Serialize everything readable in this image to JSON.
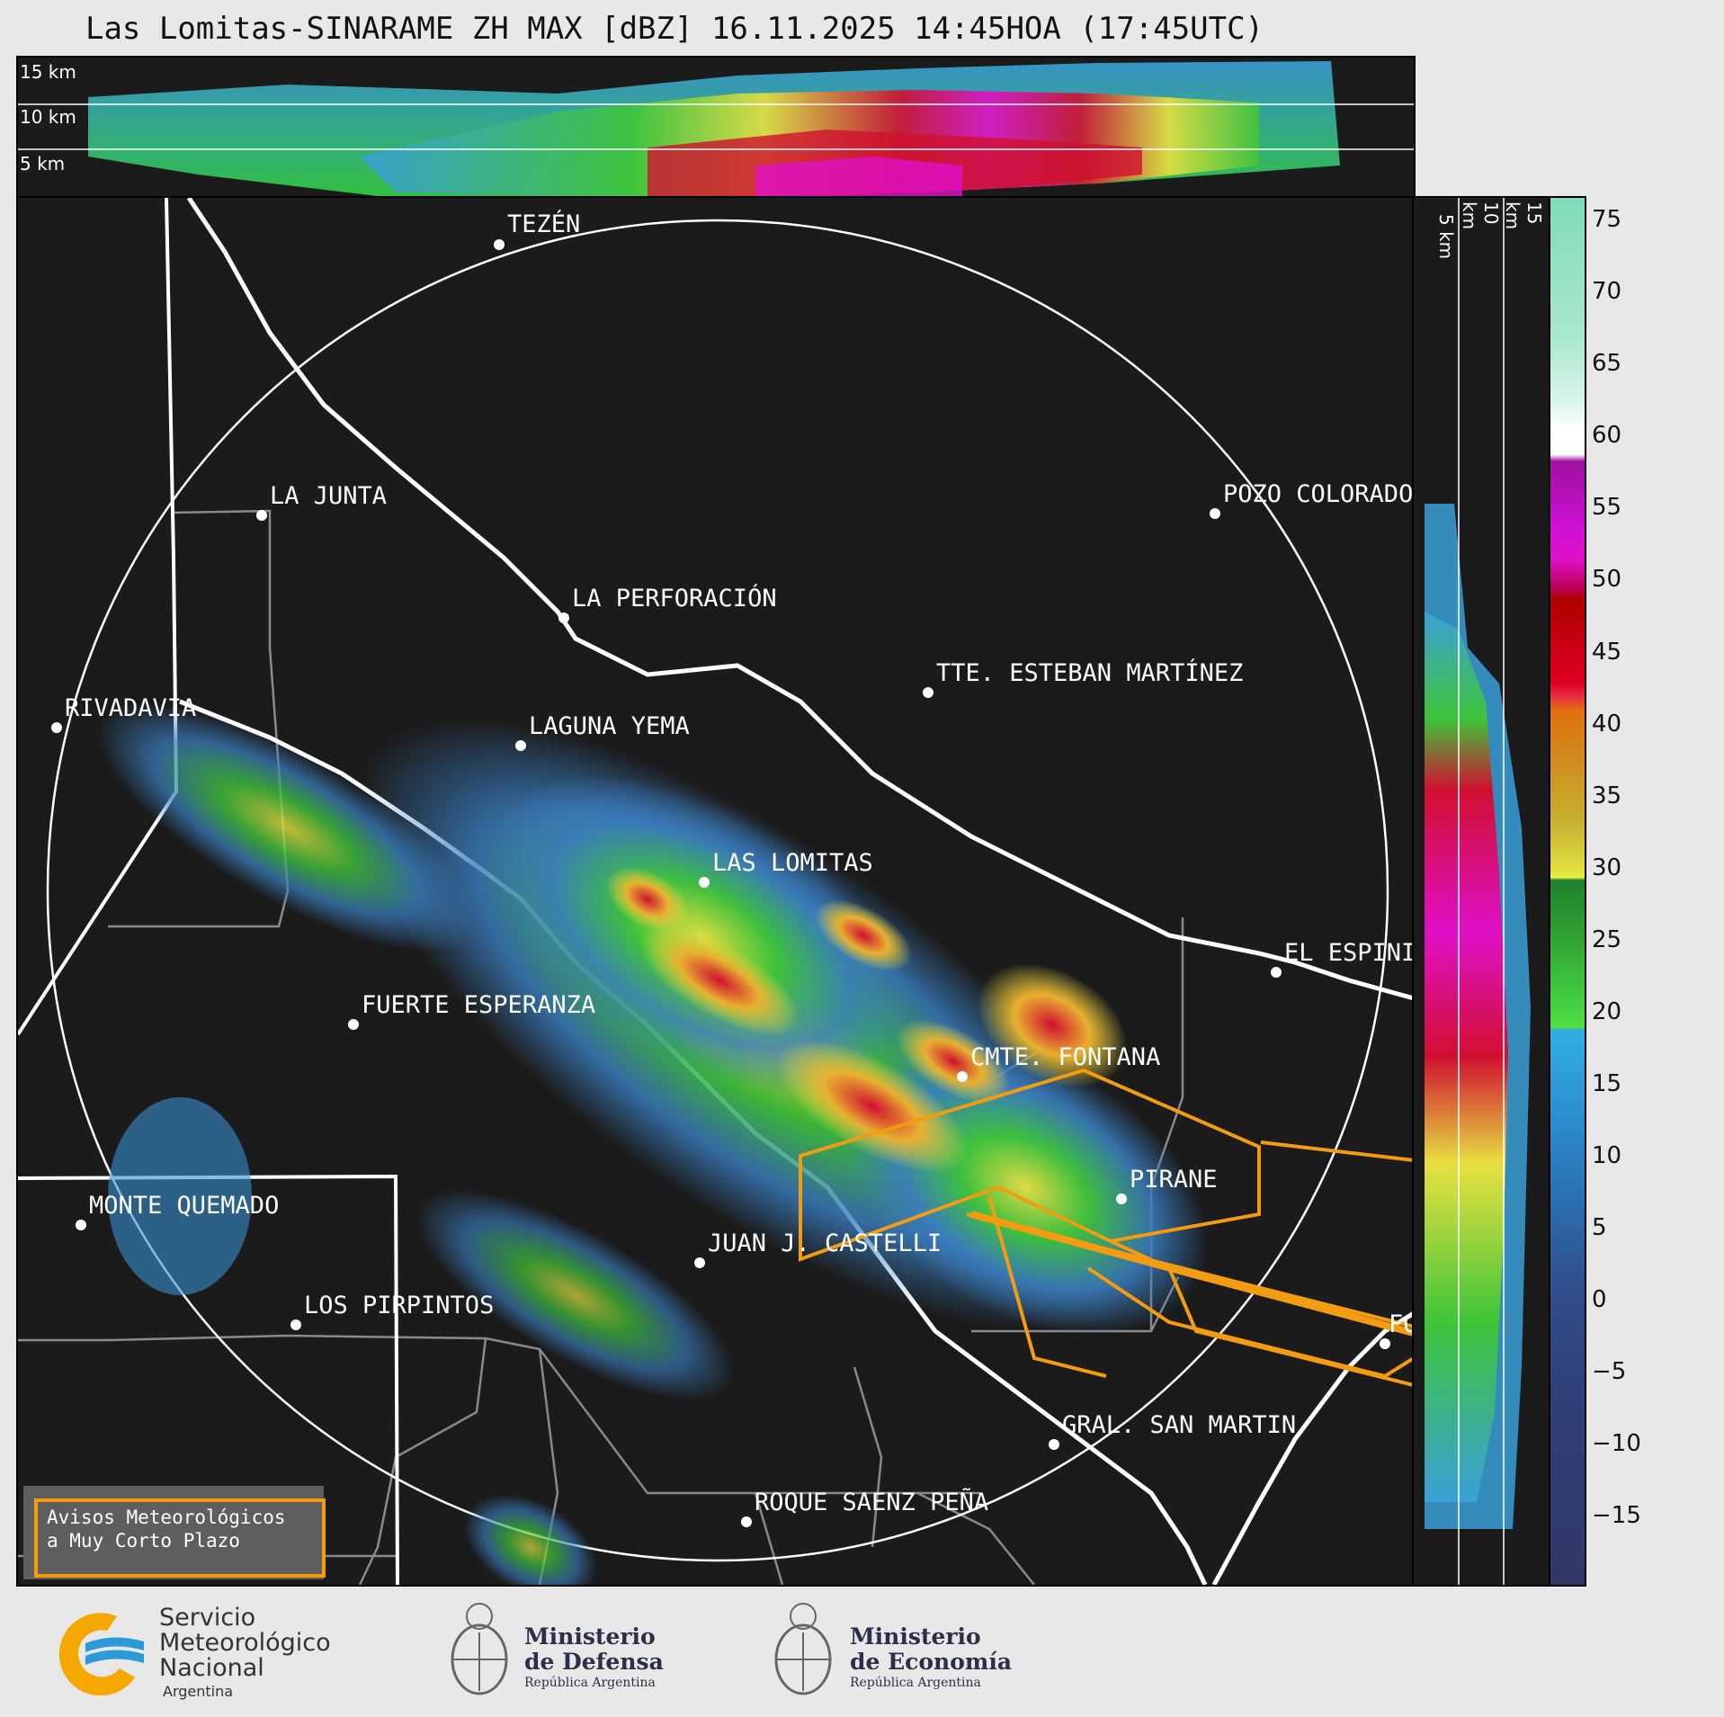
{
  "title": "Las Lomitas-SINARAME ZH MAX [dBZ] 16.11.2025 14:45HOA (17:45UTC)",
  "top_panel": {
    "labels": [
      "15 km",
      "10 km",
      "5 km"
    ]
  },
  "side_panel": {
    "labels": [
      "5 km",
      "10 km",
      "15 km"
    ]
  },
  "colorbar": {
    "ticks": [
      "75",
      "70",
      "65",
      "60",
      "55",
      "50",
      "45",
      "40",
      "35",
      "30",
      "25",
      "20",
      "15",
      "10",
      "5",
      "0",
      "−5",
      "−10",
      "−15"
    ]
  },
  "cities": [
    {
      "name": "TEZÉN"
    },
    {
      "name": "LA JUNTA"
    },
    {
      "name": "POZO COLORADO"
    },
    {
      "name": "LA PERFORACIÓN"
    },
    {
      "name": "TTE. ESTEBAN MARTÍNEZ"
    },
    {
      "name": "RIVADAVIA"
    },
    {
      "name": "LAGUNA YEMA"
    },
    {
      "name": "LAS LOMITAS"
    },
    {
      "name": "EL ESPINILLO"
    },
    {
      "name": "FUERTE ESPERANZA"
    },
    {
      "name": "CMTE. FONTANA"
    },
    {
      "name": "PIRANE"
    },
    {
      "name": "MONTE QUEMADO"
    },
    {
      "name": "JUAN J. CASTELLI"
    },
    {
      "name": "LOS PIRPINTOS"
    },
    {
      "name": "FORMOSA"
    },
    {
      "name": "GRAL. SAN MARTIN"
    },
    {
      "name": "ROQUE SAENZ PEÑA"
    }
  ],
  "warning_box": {
    "line1": "Avisos Meteorológicos",
    "line2": "a Muy Corto Plazo"
  },
  "logos": {
    "smn": {
      "line1": "Servicio",
      "line2": "Meteorológico",
      "line3": "Nacional",
      "line4": "Argentina"
    },
    "defensa": {
      "line1": "Ministerio",
      "line2": "de Defensa",
      "line3": "República Argentina"
    },
    "economia": {
      "line1": "Ministerio",
      "line2": "de Economía",
      "line3": "República Argentina"
    }
  }
}
